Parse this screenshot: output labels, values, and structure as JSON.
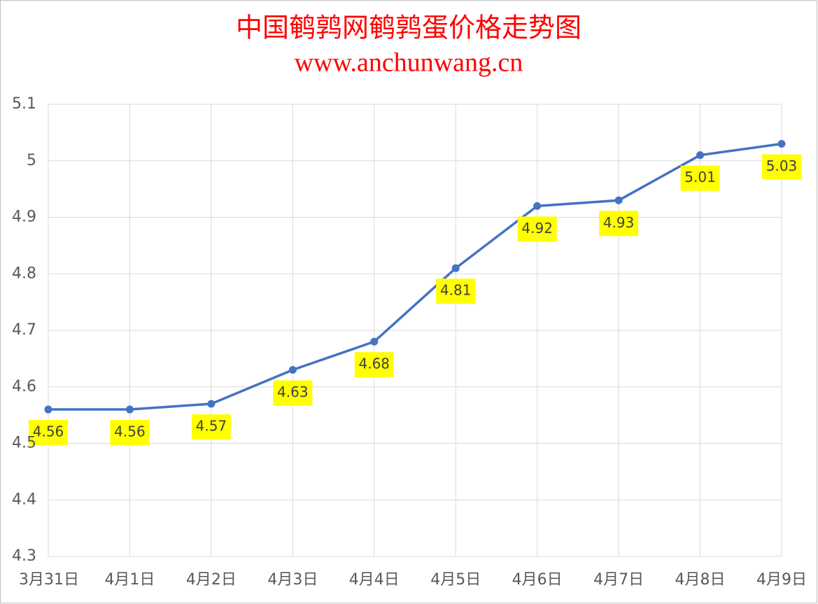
{
  "chart_data": {
    "type": "line",
    "title": "中国鹌鹑网鹌鹑蛋价格走势图",
    "subtitle": "www.anchunwang.cn",
    "categories": [
      "3月31日",
      "4月1日",
      "4月2日",
      "4月3日",
      "4月4日",
      "4月5日",
      "4月6日",
      "4月7日",
      "4月8日",
      "4月9日"
    ],
    "values": [
      4.56,
      4.56,
      4.57,
      4.63,
      4.68,
      4.81,
      4.92,
      4.93,
      5.01,
      5.03
    ],
    "color": "#4472c4",
    "ylim": [
      4.3,
      5.1
    ],
    "yticks": [
      4.3,
      4.4,
      4.5,
      4.6,
      4.7,
      4.8,
      4.9,
      5,
      5.1
    ],
    "grid": true
  }
}
